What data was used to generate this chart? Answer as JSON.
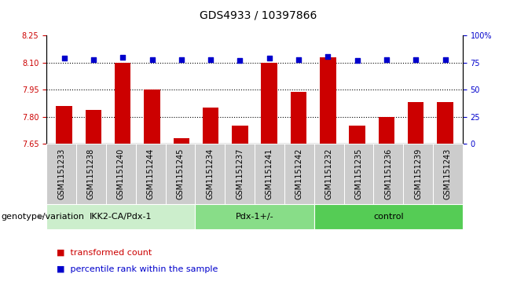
{
  "title": "GDS4933 / 10397866",
  "samples": [
    "GSM1151233",
    "GSM1151238",
    "GSM1151240",
    "GSM1151244",
    "GSM1151245",
    "GSM1151234",
    "GSM1151237",
    "GSM1151241",
    "GSM1151242",
    "GSM1151232",
    "GSM1151235",
    "GSM1151236",
    "GSM1151239",
    "GSM1151243"
  ],
  "red_values": [
    7.86,
    7.84,
    8.1,
    7.95,
    7.68,
    7.85,
    7.75,
    8.1,
    7.94,
    8.13,
    7.75,
    7.8,
    7.88,
    7.88
  ],
  "blue_values": [
    79,
    78,
    80,
    78,
    78,
    78,
    77,
    79,
    78,
    81,
    77,
    78,
    78,
    78
  ],
  "groups": [
    {
      "label": "IKK2-CA/Pdx-1",
      "start": 0,
      "end": 5
    },
    {
      "label": "Pdx-1+/-",
      "start": 5,
      "end": 9
    },
    {
      "label": "control",
      "start": 9,
      "end": 14
    }
  ],
  "group_colors": [
    "#cceecc",
    "#88dd88",
    "#55cc55"
  ],
  "ylim_left": [
    7.65,
    8.25
  ],
  "ylim_right": [
    0,
    100
  ],
  "yticks_left": [
    7.65,
    7.8,
    7.95,
    8.1,
    8.25
  ],
  "yticks_right": [
    0,
    25,
    50,
    75,
    100
  ],
  "hlines": [
    8.1,
    7.95,
    7.8
  ],
  "bar_color": "#cc0000",
  "dot_color": "#0000cc",
  "bar_width": 0.55,
  "tick_color_left": "#cc0000",
  "tick_color_right": "#0000cc",
  "legend_red": "transformed count",
  "legend_blue": "percentile rank within the sample",
  "group_label_prefix": "genotype/variation",
  "gray_box_color": "#cccccc",
  "font_size_title": 10,
  "font_size_ticks": 7,
  "font_size_legend": 8,
  "font_size_group": 8,
  "font_size_xticklabels": 7
}
